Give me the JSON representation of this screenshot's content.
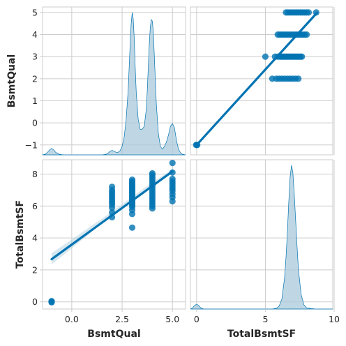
{
  "chart_data": {
    "type": "pairplot",
    "variables": [
      "BsmtQual",
      "TotalBsmtSF"
    ],
    "colors": {
      "marker": "#0173b2",
      "kde_fill": "#a9cadb",
      "band": "#a6c9dc"
    },
    "grid": true,
    "axes": {
      "BsmtQual": {
        "label": "BsmtQual",
        "range": [
          -1.45,
          5.65
        ],
        "ticks": [
          {
            "value": 0.0,
            "label": "0.0"
          },
          {
            "value": 2.5,
            "label": "2.5"
          },
          {
            "value": 5.0,
            "label": "5.0"
          }
        ]
      },
      "BsmtQual_as_y": {
        "range": [
          -1.45,
          5.25
        ],
        "ticks": [
          {
            "value": -1,
            "label": "−1"
          },
          {
            "value": 0,
            "label": "0"
          },
          {
            "value": 1,
            "label": "1"
          },
          {
            "value": 2,
            "label": "2"
          },
          {
            "value": 3,
            "label": "3"
          },
          {
            "value": 4,
            "label": "4"
          },
          {
            "value": 5,
            "label": "5"
          }
        ]
      },
      "TotalBsmtSF": {
        "label": "TotalBsmtSF",
        "range": [
          -0.45,
          9.9
        ],
        "ticks": [
          {
            "value": 0,
            "label": "0"
          },
          {
            "value": 5,
            "label": "5"
          },
          {
            "value": 10,
            "label": "10"
          }
        ]
      },
      "TotalBsmtSF_as_y": {
        "range": [
          -0.45,
          8.9
        ],
        "ticks": [
          {
            "value": 0,
            "label": "0"
          },
          {
            "value": 2,
            "label": "2"
          },
          {
            "value": 4,
            "label": "4"
          },
          {
            "value": 6,
            "label": "6"
          },
          {
            "value": 8,
            "label": "8"
          }
        ]
      }
    },
    "diag_kde": {
      "BsmtQual": {
        "x": [
          -1.45,
          -1.3,
          -1.2,
          -1.1,
          -1.0,
          -0.9,
          -0.8,
          -0.6,
          -0.4,
          0.0,
          0.5,
          1.0,
          1.5,
          1.7,
          1.8,
          1.9,
          2.0,
          2.1,
          2.2,
          2.3,
          2.4,
          2.5,
          2.6,
          2.7,
          2.8,
          2.85,
          2.9,
          2.95,
          3.0,
          3.05,
          3.1,
          3.15,
          3.2,
          3.3,
          3.4,
          3.5,
          3.6,
          3.7,
          3.75,
          3.8,
          3.85,
          3.9,
          3.95,
          4.0,
          4.05,
          4.1,
          4.15,
          4.2,
          4.3,
          4.4,
          4.5,
          4.6,
          4.7,
          4.8,
          4.9,
          5.0,
          5.1,
          5.2,
          5.3,
          5.4,
          5.5,
          5.65
        ],
        "y": [
          0.0,
          0.005,
          0.018,
          0.035,
          0.045,
          0.035,
          0.018,
          0.003,
          0.0,
          0.0,
          0.0,
          0.0,
          0.0,
          0.004,
          0.012,
          0.024,
          0.032,
          0.026,
          0.018,
          0.018,
          0.03,
          0.06,
          0.12,
          0.25,
          0.45,
          0.62,
          0.78,
          0.92,
          1.0,
          0.96,
          0.82,
          0.62,
          0.44,
          0.25,
          0.18,
          0.18,
          0.2,
          0.32,
          0.45,
          0.62,
          0.78,
          0.9,
          0.95,
          0.94,
          0.86,
          0.7,
          0.52,
          0.36,
          0.15,
          0.06,
          0.04,
          0.06,
          0.09,
          0.14,
          0.2,
          0.22,
          0.19,
          0.1,
          0.04,
          0.013,
          0.004,
          0.0
        ]
      },
      "TotalBsmtSF": {
        "x": [
          -0.45,
          -0.3,
          -0.15,
          0.0,
          0.15,
          0.3,
          0.5,
          1.0,
          2.0,
          3.0,
          4.0,
          5.0,
          5.5,
          5.8,
          6.0,
          6.2,
          6.4,
          6.5,
          6.6,
          6.7,
          6.8,
          6.9,
          7.0,
          7.1,
          7.2,
          7.3,
          7.4,
          7.6,
          7.8,
          8.0,
          8.3,
          8.6,
          9.0,
          9.4,
          9.9
        ],
        "y": [
          0.0,
          0.008,
          0.025,
          0.034,
          0.025,
          0.008,
          0.0,
          0.0,
          0.0,
          0.0,
          0.0,
          0.0,
          0.0,
          0.005,
          0.02,
          0.07,
          0.22,
          0.36,
          0.54,
          0.74,
          0.92,
          1.0,
          0.95,
          0.8,
          0.62,
          0.44,
          0.28,
          0.1,
          0.03,
          0.008,
          0.003,
          0.001,
          0.0,
          0.0,
          0.0
        ]
      }
    },
    "scatter_TotalBsmtSF_vs_BsmtQual": {
      "points": [
        [
          -1,
          0.0
        ],
        [
          -1,
          0.05
        ],
        [
          -1,
          -0.03
        ],
        [
          2,
          5.3
        ],
        [
          2,
          5.6
        ],
        [
          2,
          5.9
        ],
        [
          2,
          6.1
        ],
        [
          2,
          6.25
        ],
        [
          2,
          6.4
        ],
        [
          2,
          6.55
        ],
        [
          2,
          6.7
        ],
        [
          2,
          6.85
        ],
        [
          2,
          7.0
        ],
        [
          2,
          7.2
        ],
        [
          3,
          4.65
        ],
        [
          3,
          5.5
        ],
        [
          3,
          5.75
        ],
        [
          3,
          5.95
        ],
        [
          3,
          6.05
        ],
        [
          3,
          6.15
        ],
        [
          3,
          6.25
        ],
        [
          3,
          6.35
        ],
        [
          3,
          6.45
        ],
        [
          3,
          6.55
        ],
        [
          3,
          6.65
        ],
        [
          3,
          6.75
        ],
        [
          3,
          6.85
        ],
        [
          3,
          6.95
        ],
        [
          3,
          7.05
        ],
        [
          3,
          7.15
        ],
        [
          3,
          7.25
        ],
        [
          3,
          7.35
        ],
        [
          3,
          7.45
        ],
        [
          3,
          7.55
        ],
        [
          3,
          7.65
        ],
        [
          4,
          5.85
        ],
        [
          4,
          6.0
        ],
        [
          4,
          6.15
        ],
        [
          4,
          6.3
        ],
        [
          4,
          6.45
        ],
        [
          4,
          6.6
        ],
        [
          4,
          6.75
        ],
        [
          4,
          6.9
        ],
        [
          4,
          7.05
        ],
        [
          4,
          7.2
        ],
        [
          4,
          7.35
        ],
        [
          4,
          7.5
        ],
        [
          4,
          7.65
        ],
        [
          4,
          7.8
        ],
        [
          4,
          7.95
        ],
        [
          4,
          8.05
        ],
        [
          5,
          6.3
        ],
        [
          5,
          6.55
        ],
        [
          5,
          6.75
        ],
        [
          5,
          6.95
        ],
        [
          5,
          7.1
        ],
        [
          5,
          7.25
        ],
        [
          5,
          7.4
        ],
        [
          5,
          7.55
        ],
        [
          5,
          7.7
        ],
        [
          5,
          8.1
        ],
        [
          5,
          8.7
        ]
      ],
      "regression": {
        "x": [
          -1,
          5
        ],
        "y": [
          2.67,
          8.17
        ]
      },
      "band": {
        "x": [
          -1,
          0,
          1,
          2,
          3,
          4,
          5
        ],
        "lo": [
          2.35,
          3.35,
          4.4,
          5.42,
          6.4,
          7.27,
          8.05
        ],
        "hi": [
          3.05,
          3.9,
          4.78,
          5.64,
          6.57,
          7.48,
          8.3
        ]
      }
    },
    "scatter_BsmtQual_vs_TotalBsmtSF": {
      "points": [
        [
          0.0,
          -1
        ],
        [
          -0.03,
          -1
        ],
        [
          0.04,
          -1
        ],
        [
          5.0,
          3
        ],
        [
          5.5,
          2
        ],
        [
          5.8,
          2
        ],
        [
          6.0,
          2
        ],
        [
          6.2,
          2
        ],
        [
          6.4,
          2
        ],
        [
          6.6,
          2
        ],
        [
          6.8,
          2
        ],
        [
          7.0,
          2
        ],
        [
          7.2,
          2
        ],
        [
          7.4,
          2
        ],
        [
          5.7,
          3
        ],
        [
          5.9,
          3
        ],
        [
          6.05,
          3
        ],
        [
          6.15,
          3
        ],
        [
          6.25,
          3
        ],
        [
          6.35,
          3
        ],
        [
          6.45,
          3
        ],
        [
          6.55,
          3
        ],
        [
          6.65,
          3
        ],
        [
          6.75,
          3
        ],
        [
          6.85,
          3
        ],
        [
          6.95,
          3
        ],
        [
          7.05,
          3
        ],
        [
          7.15,
          3
        ],
        [
          7.25,
          3
        ],
        [
          7.35,
          3
        ],
        [
          7.45,
          3
        ],
        [
          7.55,
          3
        ],
        [
          7.65,
          3
        ],
        [
          5.9,
          4
        ],
        [
          6.05,
          4
        ],
        [
          6.2,
          4
        ],
        [
          6.35,
          4
        ],
        [
          6.5,
          4
        ],
        [
          6.65,
          4
        ],
        [
          6.8,
          4
        ],
        [
          6.95,
          4
        ],
        [
          7.1,
          4
        ],
        [
          7.25,
          4
        ],
        [
          7.4,
          4
        ],
        [
          7.55,
          4
        ],
        [
          7.7,
          4
        ],
        [
          7.85,
          4
        ],
        [
          8.0,
          4
        ],
        [
          6.5,
          5
        ],
        [
          6.65,
          5
        ],
        [
          6.8,
          5
        ],
        [
          6.95,
          5
        ],
        [
          7.1,
          5
        ],
        [
          7.25,
          5
        ],
        [
          7.4,
          5
        ],
        [
          7.55,
          5
        ],
        [
          7.7,
          5
        ],
        [
          7.85,
          5
        ],
        [
          8.0,
          5
        ],
        [
          8.15,
          5
        ],
        [
          8.7,
          5
        ]
      ],
      "regression": {
        "x": [
          0,
          8.75
        ],
        "y": [
          -1.0,
          4.98
        ]
      }
    }
  }
}
